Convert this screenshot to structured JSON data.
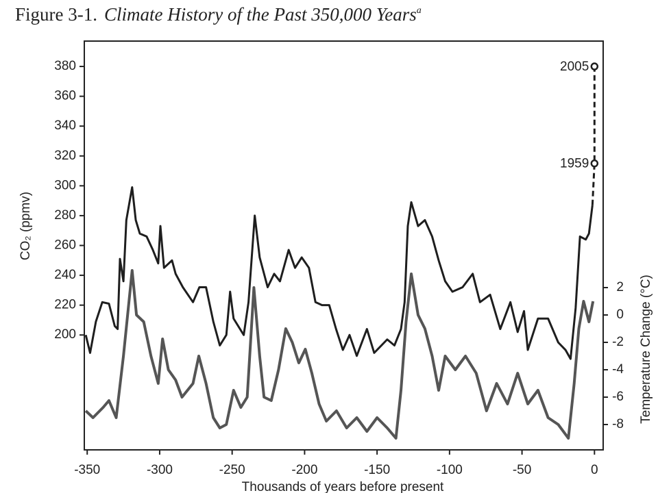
{
  "chart_data": {
    "type": "line",
    "title_label": "Figure 3-1.",
    "title": "Climate History of the Past 350,000 Years",
    "title_note": "a",
    "xlabel": "Thousands of years before present",
    "ylabel": "CO₂ (ppmv)",
    "y2label": "Temperature Change (°C)",
    "xlim": [
      -352,
      6
    ],
    "xticks": [
      -350,
      -300,
      -250,
      -200,
      -150,
      -100,
      -50,
      0
    ],
    "ylim": [
      123,
      397
    ],
    "yticks": [
      200,
      220,
      240,
      260,
      280,
      300,
      320,
      340,
      360,
      380
    ],
    "y2lim": [
      -9.85,
      20
    ],
    "y2ticks": [
      2,
      0,
      -2,
      -4,
      -6,
      -8
    ],
    "series": [
      {
        "color": "#1e1e1e",
        "axis": "y",
        "x": [
          -351,
          -348,
          -344,
          -339.6,
          -335,
          -331,
          -329,
          -327.4,
          -325,
          -323,
          -319,
          -316.5,
          -313.7,
          -309,
          -304.7,
          -301,
          -299.5,
          -297,
          -291.5,
          -289,
          -284,
          -277,
          -272.6,
          -268,
          -263,
          -258.5,
          -254,
          -251.4,
          -249,
          -242,
          -238.7,
          -234.4,
          -231,
          -225.5,
          -221,
          -217,
          -211,
          -206.6,
          -202,
          -197,
          -192.5,
          -188,
          -183,
          -178.3,
          -173.6,
          -169,
          -164,
          -157,
          -152,
          -143,
          -138,
          -133.5,
          -131,
          -128.8,
          -126.4,
          -121.7,
          -117,
          -112,
          -107.5,
          -103,
          -98,
          -91,
          -84,
          -79,
          -72,
          -65,
          -58,
          -53,
          -48.6,
          -46,
          -39,
          -32,
          -25,
          -20,
          -16.5,
          -13,
          -10,
          -6,
          -3.8,
          -1.4
        ],
        "values": [
          200,
          188,
          209,
          222,
          221,
          206,
          204,
          251,
          236,
          277,
          299,
          277,
          268,
          266,
          257,
          248,
          273,
          245,
          250,
          241,
          232,
          222,
          232,
          232,
          209,
          193,
          200,
          229,
          211,
          200,
          222,
          280,
          252,
          232,
          241,
          236,
          257,
          245,
          252,
          245,
          222,
          220,
          220,
          204,
          190,
          200,
          186,
          204,
          188,
          197,
          193,
          204,
          222,
          273,
          289,
          273,
          277,
          266,
          250,
          236,
          229,
          232,
          241,
          222,
          227,
          204,
          222,
          202,
          216,
          190,
          211,
          211,
          195,
          190,
          184,
          218,
          266,
          264,
          268,
          287
        ]
      },
      {
        "color": "#555555",
        "axis": "y2",
        "x": [
          -351,
          -346,
          -339,
          -335,
          -330,
          -325,
          -319,
          -316,
          -311,
          -306,
          -301,
          -298,
          -294,
          -289,
          -284.6,
          -277,
          -273,
          -268,
          -263,
          -258.5,
          -254,
          -249,
          -244,
          -239.6,
          -235,
          -231,
          -228,
          -223,
          -218,
          -213,
          -208.5,
          -204,
          -199.5,
          -195,
          -190,
          -185,
          -178,
          -171,
          -164,
          -157,
          -150,
          -143,
          -137,
          -133.5,
          -130,
          -126.4,
          -121.7,
          -117,
          -112,
          -107.5,
          -103,
          -96,
          -89,
          -81.6,
          -74.5,
          -67.5,
          -60,
          -53,
          -46,
          -39,
          -32,
          -25,
          -18,
          -14,
          -10.8,
          -7.5,
          -3.8,
          -1
        ],
        "values": [
          -7,
          -7.5,
          -6.75,
          -6.25,
          -7.5,
          -3,
          3.25,
          0,
          -0.5,
          -3,
          -5,
          -1.75,
          -4,
          -4.75,
          -6,
          -5,
          -3,
          -5,
          -7.5,
          -8.25,
          -8,
          -5.5,
          -6.75,
          -6,
          2,
          -3,
          -6,
          -6.25,
          -4,
          -1,
          -2,
          -3.5,
          -2.5,
          -4.25,
          -6.5,
          -7.75,
          -7,
          -8.25,
          -7.5,
          -8.5,
          -7.5,
          -8.25,
          -9,
          -5.5,
          -0.5,
          3,
          0,
          -1,
          -3,
          -5.5,
          -3,
          -4,
          -3,
          -4.25,
          -7,
          -5,
          -6.5,
          -4.25,
          -6.5,
          -5.5,
          -7.5,
          -8,
          -9,
          -5,
          -1,
          1,
          -0.5,
          1
        ]
      },
      {
        "color": "#1e1e1e",
        "axis": "y",
        "dashed": true,
        "x": [
          -1.4,
          0,
          0
        ],
        "values": [
          287,
          315,
          380
        ],
        "point_labels": [
          null,
          "1959",
          "2005"
        ]
      }
    ]
  }
}
